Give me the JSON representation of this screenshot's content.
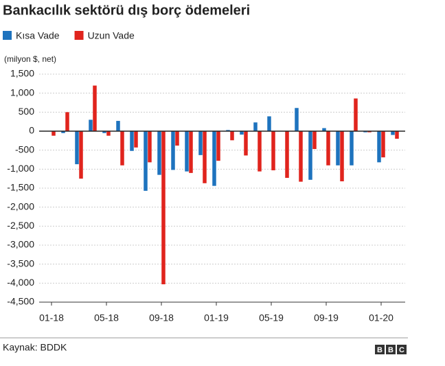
{
  "chart_data": {
    "type": "bar",
    "title": "Bankacılık sektörü dış borç ödemeleri",
    "y_label": "(milyon $, net)",
    "source": "Kaynak: BDDK",
    "logo": [
      "B",
      "B",
      "C"
    ],
    "categories": [
      "01-18",
      null,
      null,
      null,
      "05-18",
      null,
      null,
      null,
      "09-18",
      null,
      null,
      null,
      "01-19",
      null,
      null,
      null,
      "05-19",
      null,
      null,
      null,
      "09-19",
      null,
      null,
      null,
      "01-20",
      null
    ],
    "series": [
      {
        "name": "Kısa Vade",
        "color": "#1e73be",
        "values": [
          0,
          -50,
          -870,
          300,
          -50,
          270,
          -520,
          -1570,
          -1150,
          -1020,
          -1060,
          -630,
          -1440,
          30,
          -90,
          230,
          390,
          0,
          610,
          -1280,
          80,
          -900,
          -900,
          -30,
          -820,
          -100
        ]
      },
      {
        "name": "Uzun Vade",
        "color": "#e0241d",
        "values": [
          -120,
          500,
          -1250,
          1200,
          -120,
          -900,
          -430,
          -820,
          -4030,
          -380,
          -1100,
          -1370,
          -780,
          -240,
          -640,
          -1060,
          -1030,
          -1230,
          -1330,
          -470,
          -900,
          -1320,
          860,
          -30,
          -690,
          -200
        ]
      }
    ],
    "ylim": [
      -4500,
      1500
    ],
    "yticks": [
      {
        "value": -4500,
        "label": "-4,500"
      },
      {
        "value": -4000,
        "label": "-4,000"
      },
      {
        "value": -3500,
        "label": "-3,500"
      },
      {
        "value": -3000,
        "label": "-3,000"
      },
      {
        "value": -2500,
        "label": "-2,500"
      },
      {
        "value": -2000,
        "label": "-2,000"
      },
      {
        "value": -1500,
        "label": "-1,500"
      },
      {
        "value": -1000,
        "label": "-1,000"
      },
      -500,
      0,
      500,
      {
        "value": 1000,
        "label": "1,000"
      },
      {
        "value": 1500,
        "label": "1,500"
      }
    ],
    "grid": true,
    "legend": "top-left"
  }
}
